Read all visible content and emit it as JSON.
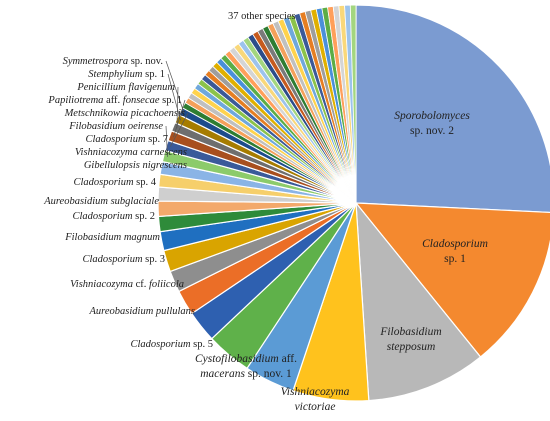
{
  "chart_data": {
    "type": "pie",
    "title": "",
    "others_label": "37 other species",
    "slices": [
      {
        "label": "Sporobolomyces sp. nov. 2",
        "value": 25.0,
        "color": "#7B9BD1",
        "label_lines": [
          {
            "segs": [
              {
                "t": "Sporobolomyces",
                "i": true
              }
            ]
          },
          {
            "segs": [
              {
                "t": "sp. nov. 2",
                "i": false
              }
            ]
          }
        ]
      },
      {
        "label": "Cladosporium sp. 1",
        "value": 13.0,
        "color": "#F4892F",
        "label_lines": [
          {
            "segs": [
              {
                "t": "Cladosporium",
                "i": true
              }
            ]
          },
          {
            "segs": [
              {
                "t": "sp. 1",
                "i": false
              }
            ]
          }
        ]
      },
      {
        "label": "Filobasidium stepposum",
        "value": 9.5,
        "color": "#B8B8B8",
        "label_lines": [
          {
            "segs": [
              {
                "t": "Filobasidium",
                "i": true
              }
            ]
          },
          {
            "segs": [
              {
                "t": "stepposum",
                "i": true
              }
            ]
          }
        ]
      },
      {
        "label": "Vishniacozyma victoriae",
        "value": 6.0,
        "color": "#FFC21D",
        "label_lines": [
          {
            "segs": [
              {
                "t": "Vishniacozyma",
                "i": true
              }
            ]
          },
          {
            "segs": [
              {
                "t": "victoriae",
                "i": true
              }
            ]
          }
        ]
      },
      {
        "label": "Cystofilobasidium aff. macerans sp. nov. 1",
        "value": 4.0,
        "color": "#5B9BD5",
        "label_lines": [
          {
            "segs": [
              {
                "t": "Cystofilobasidium",
                "i": true
              },
              {
                "t": " aff.",
                "i": false
              }
            ]
          },
          {
            "segs": [
              {
                "t": "macerans",
                "i": true
              },
              {
                "t": " sp. nov. 1",
                "i": false
              }
            ]
          }
        ]
      },
      {
        "label": "Cladosporium sp. 5",
        "value": 3.6,
        "color": "#5FB14A",
        "label_lines": [
          {
            "segs": [
              {
                "t": "Cladosporium",
                "i": true
              },
              {
                "t": " sp. 5",
                "i": false
              }
            ]
          }
        ]
      },
      {
        "label": "Aureobasidium pullulans",
        "value": 2.5,
        "color": "#2E60B0",
        "label_lines": [
          {
            "segs": [
              {
                "t": "Aureobasidium pullulans",
                "i": true
              }
            ]
          }
        ]
      },
      {
        "label": "Vishniacozyma cf. foliicola",
        "value": 2.0,
        "color": "#EB6E27",
        "label_lines": [
          {
            "segs": [
              {
                "t": "Vishniacozyma",
                "i": true
              },
              {
                "t": " cf. ",
                "i": false
              },
              {
                "t": "foliicola",
                "i": true
              }
            ]
          }
        ]
      },
      {
        "label": "Cladosporium sp. 3",
        "value": 1.7,
        "color": "#8E8E8E",
        "label_lines": [
          {
            "segs": [
              {
                "t": "Cladosporium",
                "i": true
              },
              {
                "t": " sp. 3",
                "i": false
              }
            ]
          }
        ]
      },
      {
        "label": "Filobasidium magnum",
        "value": 1.7,
        "color": "#D9A400",
        "label_lines": [
          {
            "segs": [
              {
                "t": "Filobasidium magnum",
                "i": true
              }
            ]
          }
        ]
      },
      {
        "label": "Cladosporium sp. 2",
        "value": 1.5,
        "color": "#1F6FC0",
        "label_lines": [
          {
            "segs": [
              {
                "t": "Cladosporium",
                "i": true
              },
              {
                "t": " sp. 2",
                "i": false
              }
            ]
          }
        ]
      },
      {
        "label": "Aureobasidium subglaciale",
        "value": 1.2,
        "color": "#2E8B3A",
        "label_lines": [
          {
            "segs": [
              {
                "t": "Aureobasidium subglaciale",
                "i": true
              }
            ]
          }
        ]
      },
      {
        "label": "Cladosporium sp. 4",
        "value": 1.2,
        "color": "#F3A96B",
        "label_lines": [
          {
            "segs": [
              {
                "t": "Cladosporium",
                "i": true
              },
              {
                "t": " sp. 4",
                "i": false
              }
            ]
          }
        ]
      },
      {
        "label": "Gibellulopsis nigrescens",
        "value": 1.1,
        "color": "#CFCFCF",
        "label_lines": [
          {
            "segs": [
              {
                "t": "Gibellulopsis nigrescens",
                "i": true
              }
            ]
          }
        ]
      },
      {
        "label": "Vishniacozyma carnescens",
        "value": 1.0,
        "color": "#F6CF6B",
        "label_lines": [
          {
            "segs": [
              {
                "t": "Vishniacozyma carnescens",
                "i": true
              }
            ]
          }
        ]
      },
      {
        "label": "Cladosporium sp. 7",
        "value": 1.0,
        "color": "#8AB4E6",
        "label_lines": [
          {
            "segs": [
              {
                "t": "Cladosporium",
                "i": true
              },
              {
                "t": " sp. 7",
                "i": false
              }
            ]
          }
        ]
      },
      {
        "label": "Filobasidium oeirense",
        "value": 0.9,
        "color": "#8CCB6B",
        "label_lines": [
          {
            "segs": [
              {
                "t": "Filobasidium oeirense",
                "i": true
              }
            ]
          }
        ]
      },
      {
        "label": "Metschnikowia picachoensis",
        "value": 0.8,
        "color": "#3A5A9A",
        "label_lines": [
          {
            "segs": [
              {
                "t": "Metschnikowia picachoensis",
                "i": true
              }
            ]
          }
        ]
      },
      {
        "label": "Papiliotrema aff. fonsecae sp. 1",
        "value": 0.8,
        "color": "#A84F1E",
        "label_lines": [
          {
            "segs": [
              {
                "t": "Papiliotrema",
                "i": true
              },
              {
                "t": " aff. ",
                "i": false
              },
              {
                "t": "fonsecae",
                "i": true
              },
              {
                "t": " sp. 1",
                "i": false
              }
            ]
          }
        ]
      },
      {
        "label": "Penicillium flavigenum",
        "value": 0.7,
        "color": "#6E6E6E",
        "label_lines": [
          {
            "segs": [
              {
                "t": "Penicillium flavigenum",
                "i": true
              }
            ]
          }
        ]
      },
      {
        "label": "Stemphylium sp. 1",
        "value": 0.7,
        "color": "#A67C00",
        "label_lines": [
          {
            "segs": [
              {
                "t": "Stemphylium",
                "i": true
              },
              {
                "t": " sp. 1",
                "i": false
              }
            ]
          }
        ]
      },
      {
        "label": "Symmetrospora sp. nov.",
        "value": 0.6,
        "color": "#1C4C8C",
        "label_lines": [
          {
            "segs": [
              {
                "t": "Symmetrospora",
                "i": true
              },
              {
                "t": " sp. nov.",
                "i": false
              }
            ]
          }
        ]
      }
    ],
    "others": {
      "value": 16.5,
      "count": 37,
      "colors": [
        "#2E7D32",
        "#F5A05A",
        "#C0C0C0",
        "#FFD34D",
        "#6FA8DC",
        "#8BC34A",
        "#3B5998",
        "#E67E22",
        "#9E9E9E",
        "#E0B000",
        "#4A90D9",
        "#5CAD46",
        "#FF9F5A",
        "#D5D5D5",
        "#F9D87A",
        "#9CC3EC",
        "#A3D67F",
        "#2C4C8A",
        "#C65A1E",
        "#7A7A7A"
      ]
    }
  }
}
